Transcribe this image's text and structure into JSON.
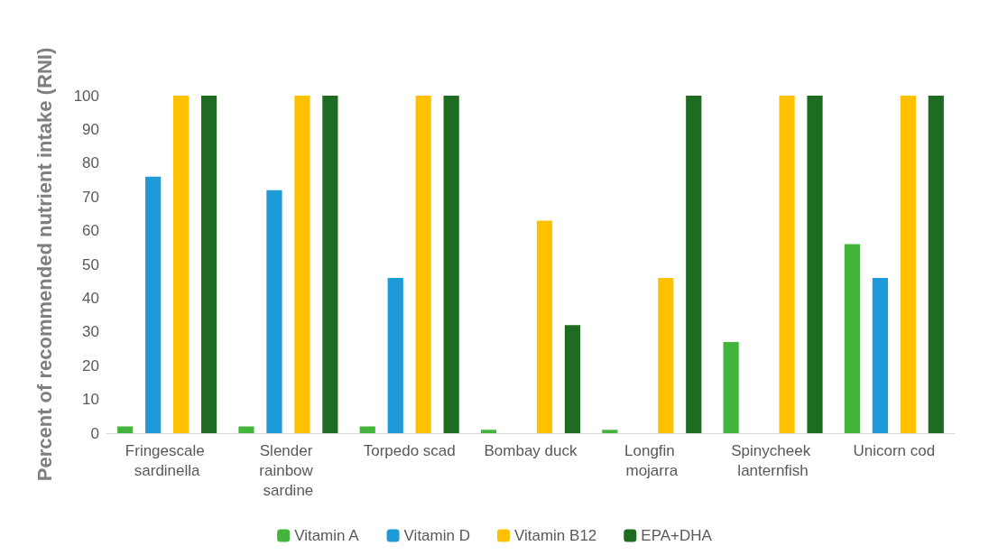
{
  "chart_data": {
    "type": "bar",
    "ylabel": "Percent of recommended nutrient intake (RNI)",
    "categories": [
      "Fringescale sardinella",
      "Slender rainbow sardine",
      "Torpedo scad",
      "Bombay duck",
      "Longfin mojarra",
      "Spinycheek lanternfish",
      "Unicorn cod"
    ],
    "series": [
      {
        "name": "Vitamin A",
        "color": "#43b53c",
        "values": [
          2,
          2,
          2,
          1,
          1,
          27,
          56
        ]
      },
      {
        "name": "Vitamin D",
        "color": "#1f9ad8",
        "values": [
          76,
          72,
          46,
          null,
          null,
          null,
          46
        ]
      },
      {
        "name": "Vitamin B12",
        "color": "#ffc000",
        "values": [
          100,
          100,
          100,
          63,
          46,
          100,
          100
        ]
      },
      {
        "name": "EPA+DHA",
        "color": "#1e6b22",
        "values": [
          100,
          100,
          100,
          32,
          100,
          100,
          100
        ]
      }
    ],
    "ylim": [
      0,
      100
    ],
    "yticks": [
      0,
      10,
      20,
      30,
      40,
      50,
      60,
      70,
      80,
      90,
      100
    ],
    "grid": false,
    "legend": "bottom"
  }
}
